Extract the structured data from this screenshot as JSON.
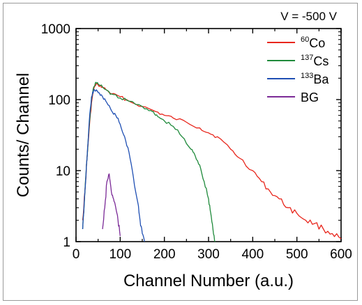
{
  "chart_data": {
    "type": "line",
    "annotation": "V = -500 V",
    "xlabel": "Channel Number (a.u.)",
    "ylabel": "Counts/ Channel",
    "xlim": [
      0,
      600
    ],
    "ylim": [
      1,
      1000
    ],
    "yscale": "log",
    "x_ticks": [
      "0",
      "100",
      "200",
      "300",
      "400",
      "500",
      "600"
    ],
    "y_ticks": [
      "1",
      "10",
      "100",
      "1000"
    ],
    "legend_position": "top-right",
    "series": [
      {
        "sup": "60",
        "name": "Co",
        "color": "#e8261c",
        "x": [
          15,
          20,
          25,
          30,
          35,
          40,
          45,
          50,
          60,
          70,
          80,
          100,
          120,
          150,
          180,
          200,
          220,
          250,
          280,
          300,
          320,
          350,
          370,
          400,
          420,
          440,
          460,
          480,
          500,
          520,
          540,
          560,
          580,
          600
        ],
        "y": [
          2,
          5,
          15,
          40,
          90,
          140,
          165,
          160,
          150,
          135,
          120,
          110,
          95,
          80,
          68,
          60,
          55,
          48,
          40,
          34,
          30,
          20,
          15,
          10,
          7,
          5,
          4,
          3,
          2.5,
          2,
          1.8,
          1.5,
          1.3,
          1.1
        ]
      },
      {
        "sup": "137",
        "name": "Cs",
        "color": "#1f8a3b",
        "x": [
          15,
          20,
          25,
          30,
          35,
          40,
          45,
          50,
          60,
          70,
          80,
          100,
          120,
          150,
          170,
          180,
          190,
          200,
          220,
          240,
          260,
          270,
          280,
          290,
          300,
          305,
          310,
          315
        ],
        "y": [
          1.5,
          5,
          15,
          45,
          100,
          150,
          175,
          165,
          150,
          135,
          120,
          105,
          95,
          80,
          70,
          60,
          55,
          50,
          42,
          30,
          20,
          16,
          12,
          7,
          4,
          2.5,
          1.5,
          1
        ]
      },
      {
        "sup": "133",
        "name": "Ba",
        "color": "#1f4fb3",
        "x": [
          15,
          20,
          25,
          30,
          35,
          40,
          45,
          50,
          60,
          70,
          80,
          90,
          100,
          110,
          120,
          130,
          140,
          145,
          150,
          155
        ],
        "y": [
          1.5,
          5,
          15,
          50,
          110,
          135,
          135,
          125,
          110,
          90,
          70,
          60,
          45,
          30,
          18,
          8,
          3.5,
          2,
          1.3,
          1
        ]
      },
      {
        "sup": "",
        "name": "BG",
        "color": "#7b2a97",
        "x": [
          60,
          65,
          70,
          75,
          80,
          85,
          90,
          95,
          100
        ],
        "y": [
          1.5,
          3,
          7,
          9,
          5,
          4,
          3,
          2,
          1.2
        ]
      }
    ]
  }
}
